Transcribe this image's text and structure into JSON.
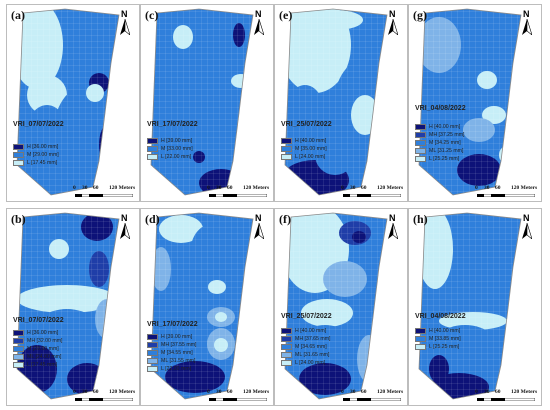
{
  "colors": {
    "H": "#0d1278",
    "MH": "#1f3ea8",
    "M": "#2f7fdb",
    "ML": "#7fb3e8",
    "L": "#c7eef7",
    "outline": "#8a8a8a"
  },
  "north_label": "N",
  "scale": {
    "t0": "0",
    "t1": "30",
    "t2": "60",
    "t3": "120 Meters"
  },
  "panels": [
    {
      "id": "a",
      "label": "(a)",
      "title": "VRI_07/07/2022",
      "legend": [
        {
          "c": "H",
          "text": "H [36.00 mm]"
        },
        {
          "c": "M",
          "text": "M [29.00 mm]"
        },
        {
          "c": "L",
          "text": "L [17.45 mm]"
        }
      ]
    },
    {
      "id": "c",
      "label": "(c)",
      "title": "VRI_17/07/2022",
      "legend": [
        {
          "c": "H",
          "text": "H [39.00 mm]"
        },
        {
          "c": "M",
          "text": "M [33.00 mm]"
        },
        {
          "c": "L",
          "text": "L [22.00 mm]"
        }
      ]
    },
    {
      "id": "e",
      "label": "(e)",
      "title": "VRI_25/07/2022",
      "legend": [
        {
          "c": "H",
          "text": "H [40.00 mm]"
        },
        {
          "c": "M",
          "text": "M [35.00 mm]"
        },
        {
          "c": "L",
          "text": "L [24.00 mm]"
        }
      ]
    },
    {
      "id": "g",
      "label": "(g)",
      "title": "VRI_04/08/2022",
      "legend": [
        {
          "c": "H",
          "text": "H [40.00 mm]"
        },
        {
          "c": "MH",
          "text": "MH [37.25 mm]"
        },
        {
          "c": "M",
          "text": "M [34.25 mm]"
        },
        {
          "c": "ML",
          "text": "ML [31.25 mm]"
        },
        {
          "c": "L",
          "text": "L [25.25 mm]"
        }
      ]
    },
    {
      "id": "b",
      "label": "(b)",
      "title": "VRI_07/07/2022",
      "legend": [
        {
          "c": "H",
          "text": "H [36.00 mm]"
        },
        {
          "c": "MH",
          "text": "MH [32.00 mm]"
        },
        {
          "c": "M",
          "text": "M [28.00 mm]"
        },
        {
          "c": "ML",
          "text": "ML [24.00 mm]"
        },
        {
          "c": "L",
          "text": "L [17.45 mm]"
        }
      ]
    },
    {
      "id": "d",
      "label": "(d)",
      "title": "VRI_17/07/2022",
      "legend": [
        {
          "c": "H",
          "text": "H [39.00 mm]"
        },
        {
          "c": "MH",
          "text": "MH [37.55 mm]"
        },
        {
          "c": "M",
          "text": "M [34.55 mm]"
        },
        {
          "c": "ML",
          "text": "ML [31.55 mm]"
        },
        {
          "c": "L",
          "text": "L [22.00 mm]"
        }
      ]
    },
    {
      "id": "f",
      "label": "(f)",
      "title": "VRI_25/07/2022",
      "legend": [
        {
          "c": "H",
          "text": "H [40.00 mm]"
        },
        {
          "c": "MH",
          "text": "MH [37.65 mm]"
        },
        {
          "c": "M",
          "text": "M [34.65 mm]"
        },
        {
          "c": "ML",
          "text": "ML [31.65 mm]"
        },
        {
          "c": "L",
          "text": "L [24.00 mm]"
        }
      ]
    },
    {
      "id": "h",
      "label": "(h)",
      "title": "VRI_04/08/2022",
      "legend": [
        {
          "c": "H",
          "text": "H [40.00 mm]"
        },
        {
          "c": "M",
          "text": "M [33.85 mm]"
        },
        {
          "c": "L",
          "text": "L [25.25 mm]"
        }
      ]
    }
  ]
}
